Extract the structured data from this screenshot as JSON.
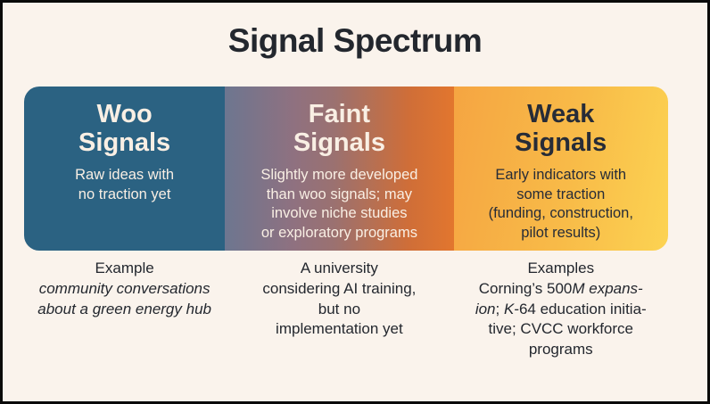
{
  "title": "Signal Spectrum",
  "colors": {
    "background": "#faf3ec",
    "border": "#0a0a0a",
    "title_text": "#23272e",
    "woo_panel_bg": "#2b6282",
    "faint_panel_gradient": [
      "#6d7690",
      "#9b7170",
      "#e2762e"
    ],
    "weak_panel_gradient": [
      "#f5a542",
      "#fcd352"
    ],
    "light_text": "#f9efe4",
    "dark_text": "#23272e"
  },
  "spectrum": {
    "panels": [
      {
        "heading_lines": [
          "Woo",
          "Signals"
        ],
        "description_lines": [
          "Raw ideas with",
          "no traction yet"
        ]
      },
      {
        "heading_lines": [
          "Faint",
          "Signals"
        ],
        "description_lines": [
          "Slightly more developed",
          "than woo signals; may",
          "involve niche studies",
          "or exploratory programs"
        ]
      },
      {
        "heading_lines": [
          "Weak",
          "Signals"
        ],
        "description_lines": [
          "Early indicators with",
          "some traction",
          "(funding, construction,",
          "pilot results)"
        ]
      }
    ]
  },
  "examples": {
    "col1": {
      "label": "Example",
      "lines": [
        "community conversations",
        "about a green energy hub"
      ]
    },
    "col2": {
      "lines": [
        "A university",
        "considering AI training,",
        "but no",
        "implementation yet"
      ]
    },
    "col3": {
      "label": "Examples",
      "line1": {
        "regular_prefix": "Corning’s 500",
        "italic_suffix": "M expans-"
      },
      "line2": {
        "italic_a": "ion",
        "regular_a": "; ",
        "italic_b": "K",
        "regular_b": "-64 education initia-"
      },
      "line3": "tive; CVCC workforce",
      "line4": "programs"
    }
  }
}
